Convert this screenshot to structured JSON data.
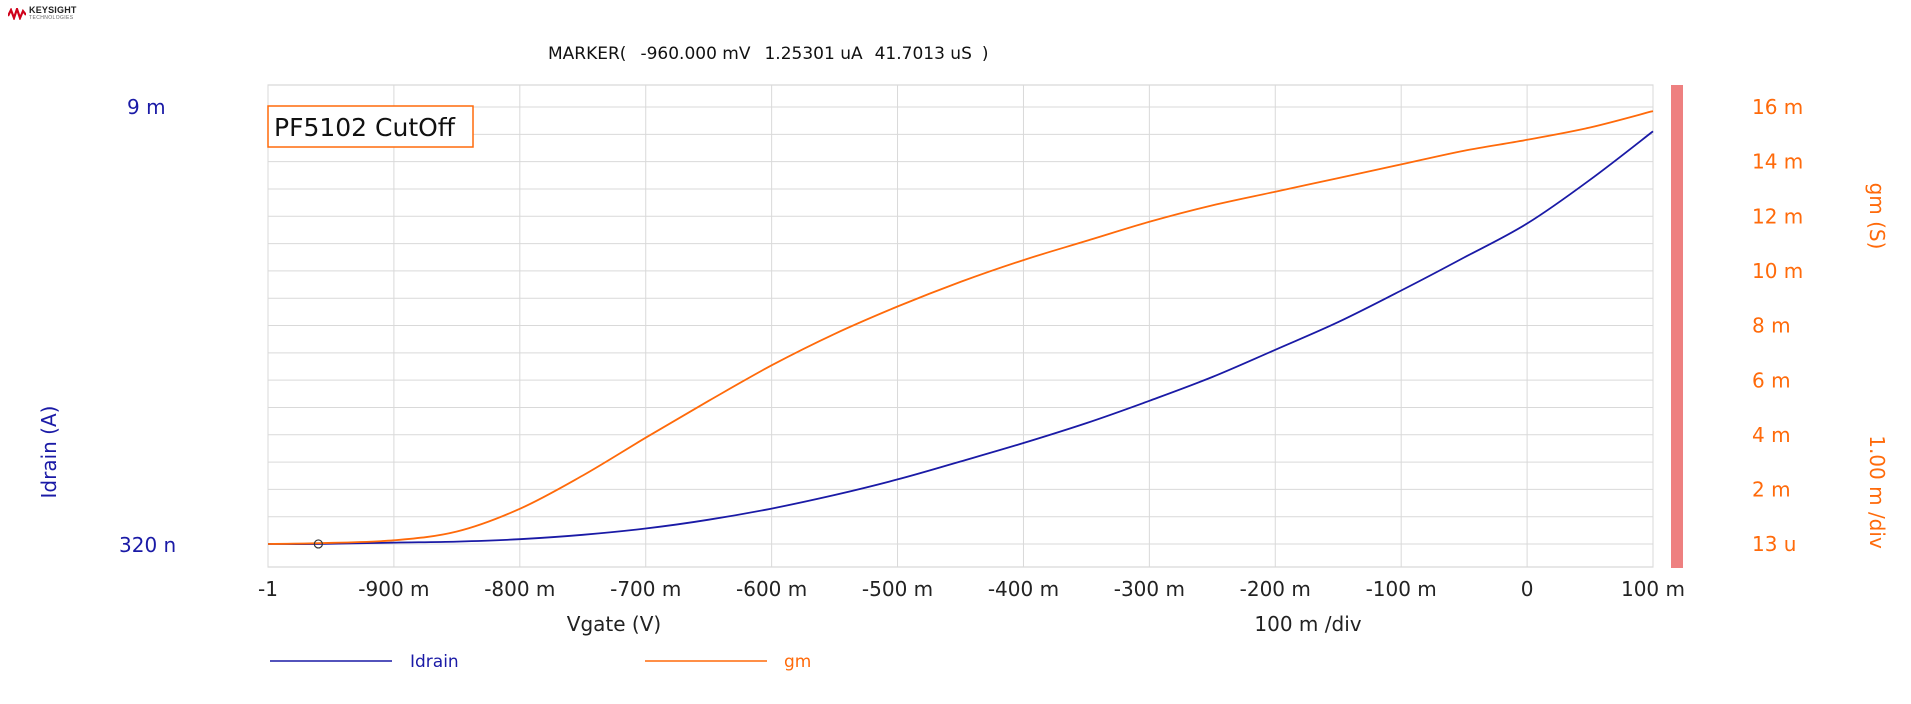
{
  "brand": {
    "name": "KEYSIGHT",
    "subtitle": "TECHNOLOGIES",
    "logo_color": "#d0021b"
  },
  "marker": {
    "label": "MARKER(",
    "x": "-960.000 mV",
    "y1": "1.25301 uA",
    "y2": "41.7013 uS",
    "close": ")"
  },
  "colors": {
    "idrain": "#1a1aa6",
    "gm": "#ff6a0a",
    "grid": "#d9d9d9",
    "right_bar": "#ee8080",
    "x_text": "#222222"
  },
  "chart_data": {
    "type": "line",
    "title": "PF5102 CutOff",
    "xlabel": "Vgate (V)",
    "x_scale_label": "100 m /div",
    "x_ticks": [
      -1.0,
      -0.9,
      -0.8,
      -0.7,
      -0.6,
      -0.5,
      -0.4,
      -0.3,
      -0.2,
      -0.1,
      0.0,
      0.1
    ],
    "x_tick_labels": [
      "-1",
      "-900 m",
      "-800 m",
      "-700 m",
      "-600 m",
      "-500 m",
      "-400 m",
      "-300 m",
      "-200 m",
      "-100 m",
      "0",
      "100 m"
    ],
    "xlim": [
      -1.0,
      0.1
    ],
    "y1": {
      "label": "Idrain (A)",
      "top_label": "9 m",
      "bottom_label": "320 n",
      "ylim": [
        3.2e-07,
        0.009
      ]
    },
    "y2": {
      "label": "gm (S)",
      "scale_label": "1.00 m /div",
      "ticks": [
        1.3e-05,
        0.002,
        0.004,
        0.006,
        0.008,
        0.01,
        0.012,
        0.014,
        0.016
      ],
      "tick_labels": [
        "13 u",
        "2 m",
        "4 m",
        "6 m",
        "8 m",
        "10 m",
        "12 m",
        "14 m",
        "16 m"
      ],
      "ylim": [
        1.3e-05,
        0.016
      ]
    },
    "grid": true,
    "legend_position": "bottom-left",
    "marker_point": {
      "x": -0.96,
      "y": 1.25301e-06
    },
    "series": [
      {
        "name": "Idrain",
        "axis": "y1",
        "x": [
          -1.0,
          -0.96,
          -0.9,
          -0.85,
          -0.8,
          -0.75,
          -0.7,
          -0.65,
          -0.6,
          -0.55,
          -0.5,
          -0.45,
          -0.4,
          -0.35,
          -0.3,
          -0.25,
          -0.2,
          -0.15,
          -0.1,
          -0.05,
          0.0,
          0.05,
          0.1
        ],
        "y": [
          0.0,
          1.3e-06,
          3e-05,
          5e-05,
          0.0001,
          0.00019,
          0.00032,
          0.0005,
          0.00073,
          0.00101,
          0.00133,
          0.0017,
          0.00208,
          0.00249,
          0.00295,
          0.00344,
          0.004,
          0.00457,
          0.00522,
          0.0059,
          0.0066,
          0.0075,
          0.0085
        ]
      },
      {
        "name": "gm",
        "axis": "y2",
        "x": [
          -1.0,
          -0.96,
          -0.9,
          -0.85,
          -0.8,
          -0.75,
          -0.7,
          -0.65,
          -0.6,
          -0.55,
          -0.5,
          -0.45,
          -0.4,
          -0.35,
          -0.3,
          -0.25,
          -0.2,
          -0.15,
          -0.1,
          -0.05,
          0.0,
          0.05,
          0.1
        ],
        "y": [
          1.3e-05,
          4.17e-05,
          0.00015,
          0.00047,
          0.0013,
          0.00252,
          0.0039,
          0.00525,
          0.00655,
          0.0077,
          0.0087,
          0.0096,
          0.0104,
          0.0111,
          0.0118,
          0.0124,
          0.0129,
          0.0134,
          0.0139,
          0.0144,
          0.0148,
          0.01525,
          0.01585
        ]
      }
    ]
  }
}
